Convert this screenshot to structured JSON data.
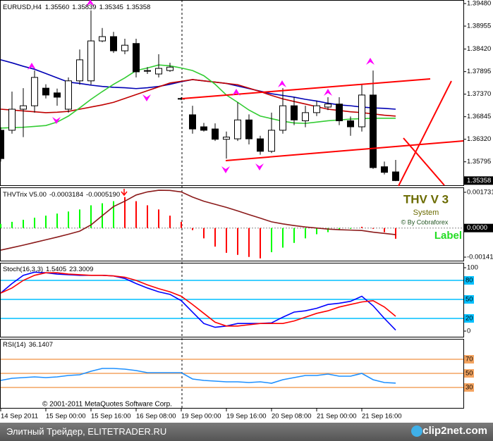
{
  "chart_data": [
    {
      "type": "candlestick",
      "title": "EURUSD,H4",
      "last_labels": [
        "1.35560",
        "1.35839",
        "1.35345",
        "1.35358"
      ],
      "categories": [
        "14 Sep 2011",
        null,
        null,
        null,
        "15 Sep 00:00",
        null,
        null,
        null,
        "15 Sep 16:00",
        null,
        null,
        null,
        "16 Sep 08:00",
        null,
        null,
        null,
        "19 Sep 00:00",
        null,
        null,
        null,
        "19 Sep 16:00",
        null,
        null,
        null,
        "20 Sep 08:00",
        null,
        null,
        null,
        "21 Sep 00:00",
        null,
        null,
        null,
        "21 Sep 16:00",
        null,
        null,
        null
      ],
      "open": [
        1.3653,
        1.3653,
        1.3702,
        1.371,
        1.3751,
        1.374,
        1.3702,
        1.3768,
        1.3768,
        1.3861,
        1.3871,
        1.3838,
        1.3855,
        1.3792,
        1.3784,
        1.3792,
        1.3727,
        1.3689,
        1.3661,
        1.3656,
        1.3632,
        1.3633,
        1.3677,
        1.3633,
        1.3604,
        1.3653,
        1.371,
        1.3675,
        1.3694,
        1.3707,
        1.3714,
        1.3675,
        1.3661,
        1.3735,
        1.3568,
        1.3556
      ],
      "high": [
        1.366,
        1.3743,
        1.3751,
        1.3792,
        1.376,
        1.375,
        1.3776,
        1.3841,
        1.3932,
        1.3891,
        1.3882,
        1.3866,
        1.3866,
        1.38,
        1.383,
        1.381,
        1.373,
        1.371,
        1.367,
        1.3669,
        1.365,
        1.3718,
        1.369,
        1.364,
        1.3694,
        1.3751,
        1.373,
        1.371,
        1.3722,
        1.373,
        1.373,
        1.3685,
        1.376,
        1.3792,
        1.358,
        1.35839
      ],
      "low": [
        1.358,
        1.3645,
        1.3637,
        1.3694,
        1.3727,
        1.371,
        1.3694,
        1.3759,
        1.3759,
        1.3858,
        1.3833,
        1.383,
        1.3776,
        1.3784,
        1.3776,
        1.3789,
        1.3723,
        1.3645,
        1.365,
        1.3628,
        1.3587,
        1.3628,
        1.362,
        1.3596,
        1.36,
        1.3645,
        1.3665,
        1.366,
        1.3686,
        1.37,
        1.3665,
        1.364,
        1.365,
        1.3563,
        1.355,
        1.35345
      ],
      "close": [
        1.3587,
        1.3702,
        1.371,
        1.3776,
        1.3735,
        1.373,
        1.3768,
        1.3817,
        1.3861,
        1.3871,
        1.3838,
        1.3851,
        1.3789,
        1.3792,
        1.3797,
        1.38,
        1.3727,
        1.3656,
        1.3653,
        1.3632,
        1.3637,
        1.3677,
        1.3633,
        1.3604,
        1.3653,
        1.371,
        1.3677,
        1.3694,
        1.371,
        1.3714,
        1.3675,
        1.3661,
        1.3735,
        1.3566,
        1.3555,
        1.35358
      ],
      "up_color": "#ffffff",
      "down_color": "#000000",
      "moving_averages": [
        {
          "color": "#0000b4",
          "values": [
            1.3817,
            1.381,
            1.3802,
            1.3795,
            1.3785,
            1.3775,
            1.3765,
            1.3762,
            1.3758,
            1.3755,
            1.3753,
            1.3752,
            1.375,
            1.3752,
            1.3755,
            1.376,
            1.3766,
            1.3771,
            1.3768,
            1.3765,
            1.3762,
            1.3756,
            1.375,
            1.3744,
            1.3738,
            1.3734,
            1.373,
            1.3725,
            1.3721,
            1.3716,
            1.3712,
            1.371,
            1.3707,
            1.3705,
            1.3704,
            1.3702
          ]
        },
        {
          "color": "#c00000",
          "values": [
            1.3702,
            1.37,
            1.3698,
            1.3696,
            1.3694,
            1.3695,
            1.3697,
            1.3702,
            1.3707,
            1.3712,
            1.3718,
            1.3727,
            1.3736,
            1.3745,
            1.3754,
            1.3763,
            1.3767,
            1.3771,
            1.3768,
            1.3765,
            1.3762,
            1.3759,
            1.3751,
            1.3743,
            1.3734,
            1.3726,
            1.372,
            1.3714,
            1.3708,
            1.3702,
            1.3699,
            1.3696,
            1.3694,
            1.3691,
            1.3688,
            1.3686
          ]
        },
        {
          "color": "#33cc33",
          "values": [
            1.3658,
            1.3659,
            1.366,
            1.3662,
            1.3664,
            1.3672,
            1.3686,
            1.3705,
            1.3725,
            1.3743,
            1.376,
            1.3775,
            1.3792,
            1.3798,
            1.3805,
            1.3803,
            1.3798,
            1.3792,
            1.378,
            1.376,
            1.3735,
            1.3718,
            1.37,
            1.3686,
            1.368,
            1.3674,
            1.367,
            1.3669,
            1.3672,
            1.3675,
            1.3677,
            1.3679,
            1.368,
            1.3681,
            1.3681,
            1.3681
          ]
        }
      ],
      "ylim": [
        1.35265,
        1.3953
      ],
      "yticks": [
        {
          "value": 1.3948,
          "label": "1.39480"
        },
        {
          "value": 1.38955,
          "label": "1.38955"
        },
        {
          "value": 1.3842,
          "label": "1.38420"
        },
        {
          "value": 1.37895,
          "label": "1.37895"
        },
        {
          "value": 1.3737,
          "label": "1.37370"
        },
        {
          "value": 1.36845,
          "label": "1.36845"
        },
        {
          "value": 1.3632,
          "label": "1.36320"
        },
        {
          "value": 1.35795,
          "label": "1.35795"
        }
      ]
    },
    {
      "type": "histogram",
      "title": "THVTrix V5.00",
      "values": [
        0.0002,
        0.0003,
        0.0004,
        0.0005,
        0.0006,
        0.0007,
        0.0008,
        0.0009,
        0.0011,
        0.0012,
        0.0013,
        0.0015,
        0.0013,
        0.0011,
        0.0009,
        0.0006,
        0.0003,
        -0.0001,
        -0.0005,
        -0.0009,
        -0.0012,
        -0.0013,
        -0.0014,
        -0.00147,
        -0.00117,
        -0.00095,
        -0.00072,
        -0.0005,
        -0.0003,
        -0.0002,
        -0.0001,
        -4e-05,
        6e-05,
        -4e-05,
        -0.0002,
        -0.000519
      ],
      "value_labels": [
        null,
        null,
        null,
        null,
        null,
        null,
        null,
        null,
        null,
        null,
        null,
        null,
        null,
        null,
        null,
        null,
        null,
        null,
        null,
        null,
        null,
        null,
        null,
        null,
        null,
        null,
        null,
        null,
        null,
        null,
        null,
        null,
        null,
        null,
        null,
        "-0.0005190"
      ],
      "colors": [
        "#00ff00",
        "#00ff00",
        "#00ff00",
        "#00ff00",
        "#00ff00",
        "#00ff00",
        "#00ff00",
        "#00ff00",
        "#00ff00",
        "#00ff00",
        "#00ff00",
        "#ff0000",
        "#ff0000",
        "#ff0000",
        "#ff0000",
        "#ff0000",
        "#ff0000",
        "#ff0000",
        "#ff0000",
        "#ff0000",
        "#ff0000",
        "#ff0000",
        "#ff0000",
        "#ff0000",
        "#00ff00",
        "#00ff00",
        "#00ff00",
        "#00ff00",
        "#00ff00",
        "#00ff00",
        "#00ff00",
        "#00ff00",
        "#ff0000",
        "#ff0000",
        "#ff0000",
        "#ff0000"
      ],
      "signal": {
        "color": "#8b1a1a",
        "values": [
          -0.00107,
          -0.00095,
          -0.00083,
          -0.0007,
          -0.00057,
          -0.00044,
          -0.0003,
          -0.00015,
          0.00015,
          0.0006,
          0.00104,
          0.0013,
          0.0016,
          0.00175,
          0.00183,
          0.00182,
          0.00175,
          0.0015,
          0.0013,
          0.00115,
          0.001,
          0.00083,
          0.00065,
          0.00048,
          0.0003,
          0.0002,
          0.00012,
          5e-05,
          0,
          -5e-05,
          -8e-05,
          -0.0001,
          -0.00012,
          -0.0002,
          -0.00026,
          -0.0003184
        ]
      },
      "annotations": [
        "THV V 3",
        "System",
        "© By Cobraforex",
        "Label"
      ],
      "ylim": [
        -0.00158,
        0.0019
      ],
      "yticks": [
        0.001731,
        {
          "value": 0,
          "label": "0.0000"
        },
        -0.00141
      ]
    },
    {
      "type": "line",
      "title": "Stoch(16,3,3)",
      "series": [
        {
          "color": "#0000ff",
          "values": [
            60,
            75,
            88,
            93,
            92,
            90,
            89,
            88,
            88,
            88,
            87,
            83,
            75,
            68,
            62,
            58,
            48,
            30,
            12,
            6,
            8,
            12,
            12,
            12,
            13,
            22,
            30,
            32,
            36,
            42,
            44,
            47,
            55,
            40,
            20,
            1.5405
          ]
        },
        {
          "color": "#ff0000",
          "values": [
            60,
            68,
            80,
            88,
            92,
            92,
            90,
            89,
            88,
            88,
            87,
            85,
            80,
            73,
            67,
            62,
            55,
            42,
            28,
            14,
            8,
            8,
            10,
            12,
            12,
            12,
            16,
            22,
            28,
            32,
            38,
            42,
            46,
            48,
            38,
            23.3009
          ]
        }
      ],
      "ylim": [
        -10,
        106.7
      ],
      "yticks": [
        100,
        0
      ],
      "levels": [
        80,
        50,
        20
      ],
      "level_color": "#00bfff"
    },
    {
      "type": "line",
      "title": "RSI(14)",
      "series": [
        {
          "color": "#1e90ff",
          "values": [
            40,
            43,
            44,
            45,
            44,
            45,
            47,
            48,
            53,
            57,
            57,
            56,
            54,
            51,
            51,
            51,
            51,
            42,
            40,
            39,
            38,
            38,
            37,
            38,
            36,
            41,
            44,
            47,
            47,
            49,
            46,
            46,
            50,
            41,
            37,
            36.1407
          ]
        }
      ],
      "annotations": [
        "© 2001-2011 MetaQuotes Software Corp."
      ],
      "ylim": [
        0,
        97
      ],
      "yticks": [],
      "levels": [
        70,
        50,
        30
      ],
      "level_color": "#f4a460"
    }
  ],
  "footer": {
    "site": "Элитный Трейдер, ELITETRADER.RU",
    "logo": "clip2net.com"
  }
}
